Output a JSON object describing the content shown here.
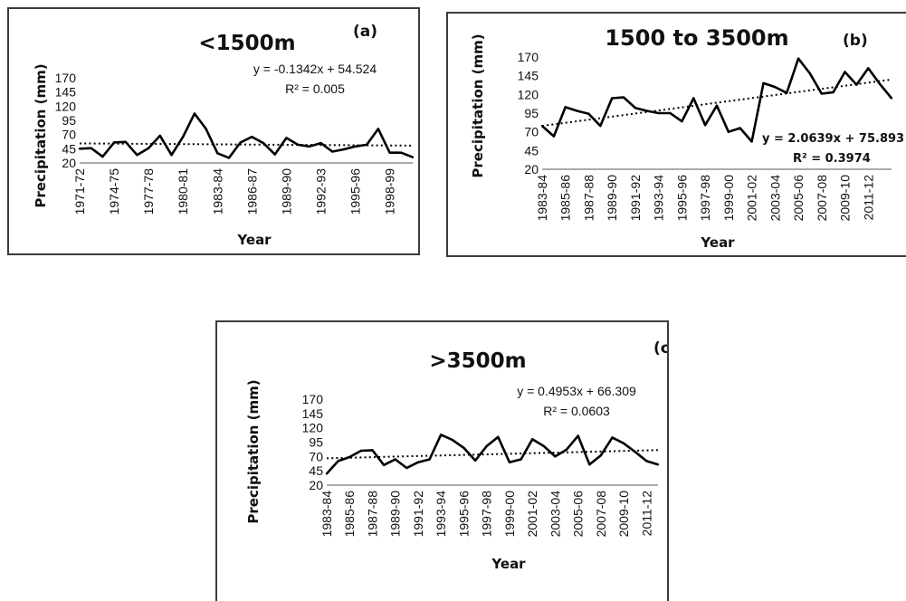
{
  "chart_data": [
    {
      "type": "line",
      "panel_label": "(a)",
      "title": "<1500m",
      "xlabel": "Year",
      "ylabel": "Precipitation (mm)",
      "y_ticks": [
        20,
        45,
        70,
        95,
        120,
        145,
        170
      ],
      "ylim": [
        20,
        170
      ],
      "x_tick_labels": [
        "1971-72",
        "1974-75",
        "1977-78",
        "1980-81",
        "1983-84",
        "1986-87",
        "1989-90",
        "1992-93",
        "1995-96",
        "1998-99"
      ],
      "x_tick_every": 3,
      "trendline": {
        "equation": "y = -0.1342x + 54.524",
        "r2": "R² = 0.005",
        "slope": -0.1342,
        "intercept": 54.524
      },
      "series": [
        {
          "values": [
            45,
            46,
            31,
            56,
            57,
            34,
            46,
            68,
            34,
            66,
            107,
            80,
            37,
            29,
            56,
            66,
            55,
            35,
            64,
            52,
            49,
            55,
            40,
            44,
            49,
            52,
            80,
            38,
            38,
            30
          ]
        }
      ]
    },
    {
      "type": "line",
      "panel_label": "(b)",
      "title": "1500 to 3500m",
      "xlabel": "Year",
      "ylabel": "Precipitation (mm)",
      "y_ticks": [
        20,
        45,
        70,
        95,
        120,
        145,
        170
      ],
      "ylim": [
        20,
        170
      ],
      "x_tick_labels": [
        "1983-84",
        "1985-86",
        "1987-88",
        "1989-90",
        "1991-92",
        "1993-94",
        "1995-96",
        "1997-98",
        "1999-00",
        "2001-02",
        "2003-04",
        "2005-06",
        "2007-08",
        "2009-10",
        "2011-12"
      ],
      "x_tick_every": 2,
      "trendline": {
        "equation": "y = 2.0639x + 75.893",
        "r2": "R² = 0.3974",
        "slope": 2.0639,
        "intercept": 75.893
      },
      "series": [
        {
          "values": [
            78,
            64,
            103,
            98,
            94,
            78,
            115,
            116,
            102,
            98,
            95,
            95,
            84,
            115,
            79,
            105,
            70,
            75,
            57,
            135,
            130,
            122,
            168,
            148,
            121,
            123,
            150,
            133,
            155,
            134,
            115
          ]
        }
      ]
    },
    {
      "type": "line",
      "panel_label": "(c)",
      "title": ">3500m",
      "xlabel": "Year",
      "ylabel": "Precipitation (mm)",
      "y_ticks": [
        20,
        45,
        70,
        95,
        120,
        145,
        170
      ],
      "ylim": [
        20,
        170
      ],
      "x_tick_labels": [
        "1983-84",
        "1985-86",
        "1987-88",
        "1989-90",
        "1991-92",
        "1993-94",
        "1995-96",
        "1997-98",
        "1999-00",
        "2001-02",
        "2003-04",
        "2005-06",
        "2007-08",
        "2009-10",
        "2011-12"
      ],
      "x_tick_every": 2,
      "trendline": {
        "equation": "y = 0.4953x + 66.309",
        "r2": "R² = 0.0603",
        "slope": 0.4953,
        "intercept": 66.309
      },
      "series": [
        {
          "values": [
            40,
            62,
            69,
            80,
            81,
            55,
            65,
            50,
            60,
            65,
            108,
            99,
            85,
            63,
            88,
            104,
            60,
            65,
            100,
            88,
            70,
            82,
            106,
            56,
            72,
            103,
            93,
            78,
            62,
            56
          ]
        }
      ]
    }
  ]
}
